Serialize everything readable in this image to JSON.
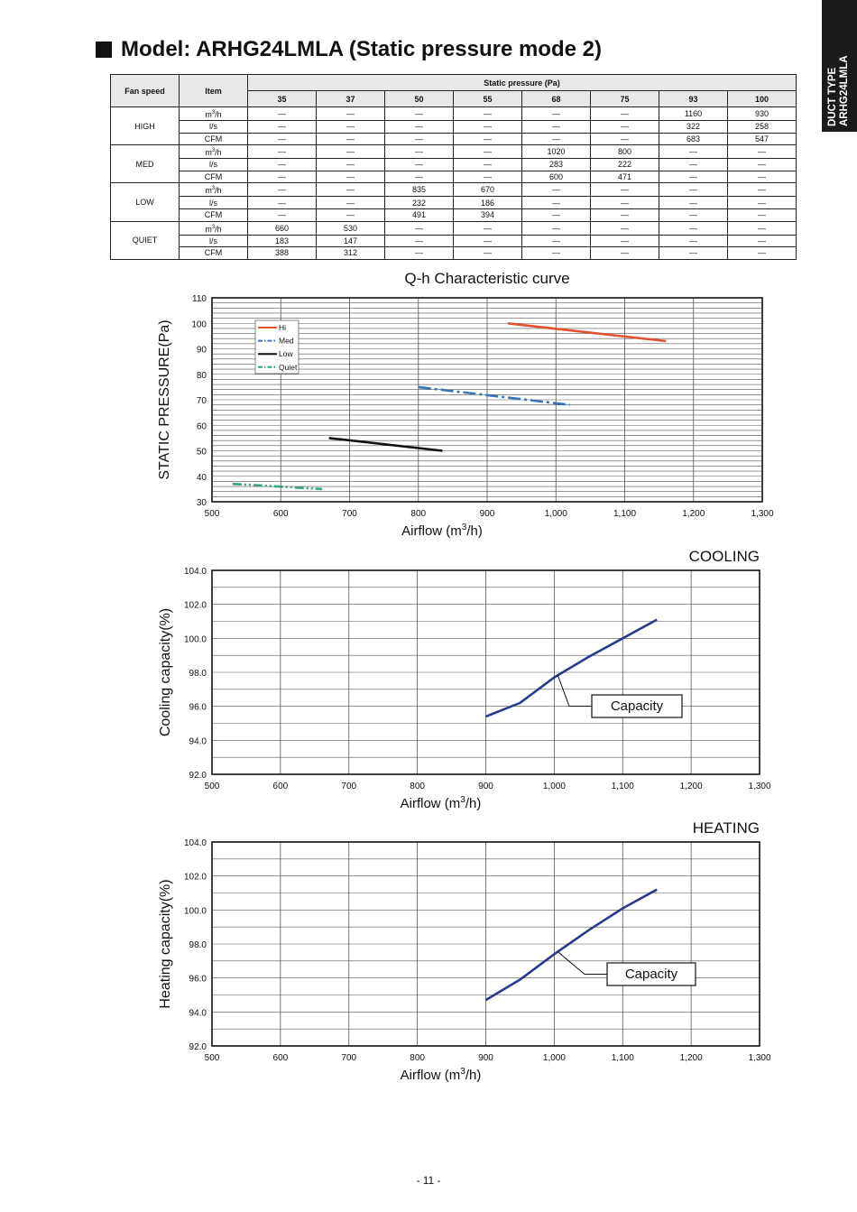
{
  "side_tab": {
    "line1": "DUCT TYPE",
    "line2": "ARHG24LMLA"
  },
  "title": "Model: ARHG24LMLA (Static pressure mode 2)",
  "table": {
    "col_fan_speed": "Fan speed",
    "col_item": "Item",
    "col_static_pressure": "Static pressure (Pa)",
    "pressures": [
      "35",
      "37",
      "50",
      "55",
      "68",
      "75",
      "93",
      "100"
    ],
    "groups": [
      {
        "speed": "HIGH",
        "rows": [
          {
            "item": "m3/h",
            "values": [
              "—",
              "—",
              "—",
              "—",
              "—",
              "—",
              "1160",
              "930"
            ]
          },
          {
            "item": "l/s",
            "values": [
              "—",
              "—",
              "—",
              "—",
              "—",
              "—",
              "322",
              "258"
            ]
          },
          {
            "item": "CFM",
            "values": [
              "—",
              "—",
              "—",
              "—",
              "—",
              "—",
              "683",
              "547"
            ]
          }
        ]
      },
      {
        "speed": "MED",
        "rows": [
          {
            "item": "m3/h",
            "values": [
              "—",
              "—",
              "—",
              "—",
              "1020",
              "800",
              "—",
              "—"
            ]
          },
          {
            "item": "l/s",
            "values": [
              "—",
              "—",
              "—",
              "—",
              "283",
              "222",
              "—",
              "—"
            ]
          },
          {
            "item": "CFM",
            "values": [
              "—",
              "—",
              "—",
              "—",
              "600",
              "471",
              "—",
              "—"
            ]
          }
        ]
      },
      {
        "speed": "LOW",
        "rows": [
          {
            "item": "m3/h",
            "values": [
              "—",
              "—",
              "835",
              "670",
              "—",
              "—",
              "—",
              "—"
            ]
          },
          {
            "item": "l/s",
            "values": [
              "—",
              "—",
              "232",
              "186",
              "—",
              "—",
              "—",
              "—"
            ]
          },
          {
            "item": "CFM",
            "values": [
              "—",
              "—",
              "491",
              "394",
              "—",
              "—",
              "—",
              "—"
            ]
          }
        ]
      },
      {
        "speed": "QUIET",
        "rows": [
          {
            "item": "m3/h",
            "values": [
              "660",
              "530",
              "—",
              "—",
              "—",
              "—",
              "—",
              "—"
            ]
          },
          {
            "item": "l/s",
            "values": [
              "183",
              "147",
              "—",
              "—",
              "—",
              "—",
              "—",
              "—"
            ]
          },
          {
            "item": "CFM",
            "values": [
              "388",
              "312",
              "—",
              "—",
              "—",
              "—",
              "—",
              "—"
            ]
          }
        ]
      }
    ]
  },
  "colors": {
    "hi": "#e2522e",
    "med": "#3a74b8",
    "low": "#111111",
    "quiet": "#3aa17e",
    "capacity": "#2a3a8c"
  },
  "chart_data": [
    {
      "type": "line",
      "title": "Q-h Characteristic curve",
      "xlabel": "Airflow (m3/h)",
      "ylabel": "STATIC PRESSURE(Pa)",
      "xlim": [
        500,
        1300
      ],
      "ylim": [
        30,
        110
      ],
      "x_ticks": [
        "500",
        "600",
        "700",
        "800",
        "900",
        "1,000",
        "1,100",
        "1,200",
        "1,300"
      ],
      "y_ticks": [
        "30",
        "40",
        "50",
        "60",
        "70",
        "80",
        "90",
        "100",
        "110"
      ],
      "grid": true,
      "legend": "top-left",
      "series": [
        {
          "name": "Hi",
          "color_key": "hi",
          "dash": "solid",
          "points": [
            [
              930,
              100
            ],
            [
              1160,
              93
            ]
          ]
        },
        {
          "name": "Med",
          "color_key": "med",
          "dash": "dashdot",
          "points": [
            [
              800,
              75
            ],
            [
              1020,
              68
            ]
          ]
        },
        {
          "name": "Low",
          "color_key": "low",
          "dash": "solid",
          "points": [
            [
              670,
              55
            ],
            [
              835,
              50
            ]
          ]
        },
        {
          "name": "Quiet",
          "color_key": "quiet",
          "dash": "dashdotdot",
          "points": [
            [
              530,
              37
            ],
            [
              660,
              35
            ]
          ]
        }
      ]
    },
    {
      "type": "line",
      "corner_label": "COOLING",
      "xlabel": "Airflow (m3/h)",
      "ylabel": "Cooling capacity(%)",
      "xlim": [
        500,
        1300
      ],
      "ylim": [
        92,
        104
      ],
      "x_ticks": [
        "500",
        "600",
        "700",
        "800",
        "900",
        "1,000",
        "1,100",
        "1,200",
        "1,300"
      ],
      "y_ticks": [
        "92.0",
        "94.0",
        "96.0",
        "98.0",
        "100.0",
        "102.0",
        "104.0"
      ],
      "grid": true,
      "callout": "Capacity",
      "series": [
        {
          "name": "Capacity",
          "color_key": "capacity",
          "points": [
            [
              900,
              95.4
            ],
            [
              950,
              96.2
            ],
            [
              1000,
              97.7
            ],
            [
              1050,
              98.9
            ],
            [
              1100,
              100.0
            ],
            [
              1150,
              101.1
            ]
          ]
        }
      ]
    },
    {
      "type": "line",
      "corner_label": "HEATING",
      "xlabel": "Airflow (m3/h)",
      "ylabel": "Heating capacity(%)",
      "xlim": [
        500,
        1300
      ],
      "ylim": [
        92,
        104
      ],
      "x_ticks": [
        "500",
        "600",
        "700",
        "800",
        "900",
        "1,000",
        "1,100",
        "1,200",
        "1,300"
      ],
      "y_ticks": [
        "92.0",
        "94.0",
        "96.0",
        "98.0",
        "100.0",
        "102.0",
        "104.0"
      ],
      "grid": true,
      "callout": "Capacity",
      "series": [
        {
          "name": "Capacity",
          "color_key": "capacity",
          "points": [
            [
              900,
              94.7
            ],
            [
              950,
              95.9
            ],
            [
              1000,
              97.4
            ],
            [
              1050,
              98.8
            ],
            [
              1100,
              100.1
            ],
            [
              1150,
              101.2
            ]
          ]
        }
      ]
    }
  ],
  "page_number": "- 11 -"
}
